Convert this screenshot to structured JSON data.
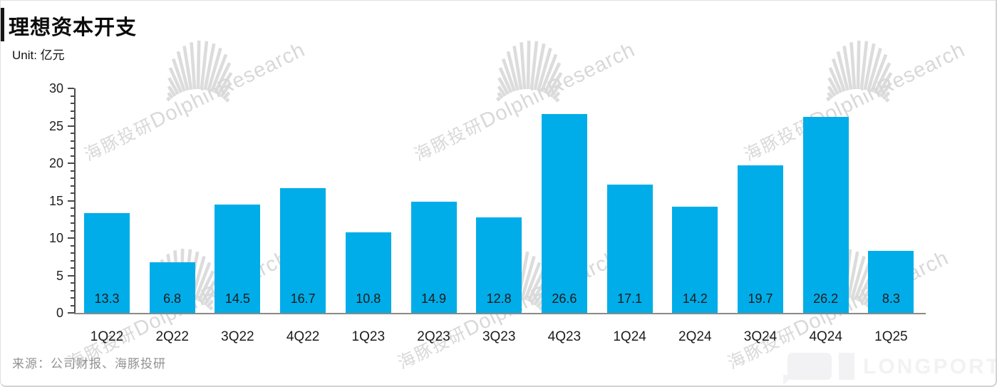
{
  "title": "理想资本开支",
  "unit_label": "Unit: 亿元",
  "source": "来源：公司财报、海豚投研",
  "watermark": {
    "zh": "海豚投研",
    "en": "DolphinResearch"
  },
  "logo": {
    "wordmark": "LONGPORT"
  },
  "colors": {
    "bar": "#00ade8",
    "y_axis": "#4a4a4a",
    "x_axis": "#8a8a86",
    "text": "#1c1c1c",
    "source_text": "#929292",
    "watermark": "#d8d8d8",
    "logo": "#f2f2f4"
  },
  "chart_data": {
    "type": "bar",
    "title": "理想资本开支",
    "xlabel": "",
    "ylabel": "Unit: 亿元",
    "categories": [
      "1Q22",
      "2Q22",
      "3Q22",
      "4Q22",
      "1Q23",
      "2Q23",
      "3Q23",
      "4Q23",
      "1Q24",
      "2Q24",
      "3Q24",
      "4Q24",
      "1Q25"
    ],
    "values": [
      13.3,
      6.8,
      14.5,
      16.7,
      10.8,
      14.9,
      12.8,
      26.6,
      17.1,
      14.2,
      19.7,
      26.2,
      8.3
    ],
    "ylim": [
      0,
      30
    ],
    "ytick_major_interval": 5,
    "ytick_minor_interval": 1,
    "yticks": [
      0,
      5,
      10,
      15,
      20,
      25,
      30
    ],
    "grid": false,
    "legend": false,
    "value_labels_position": "inside-bottom"
  }
}
